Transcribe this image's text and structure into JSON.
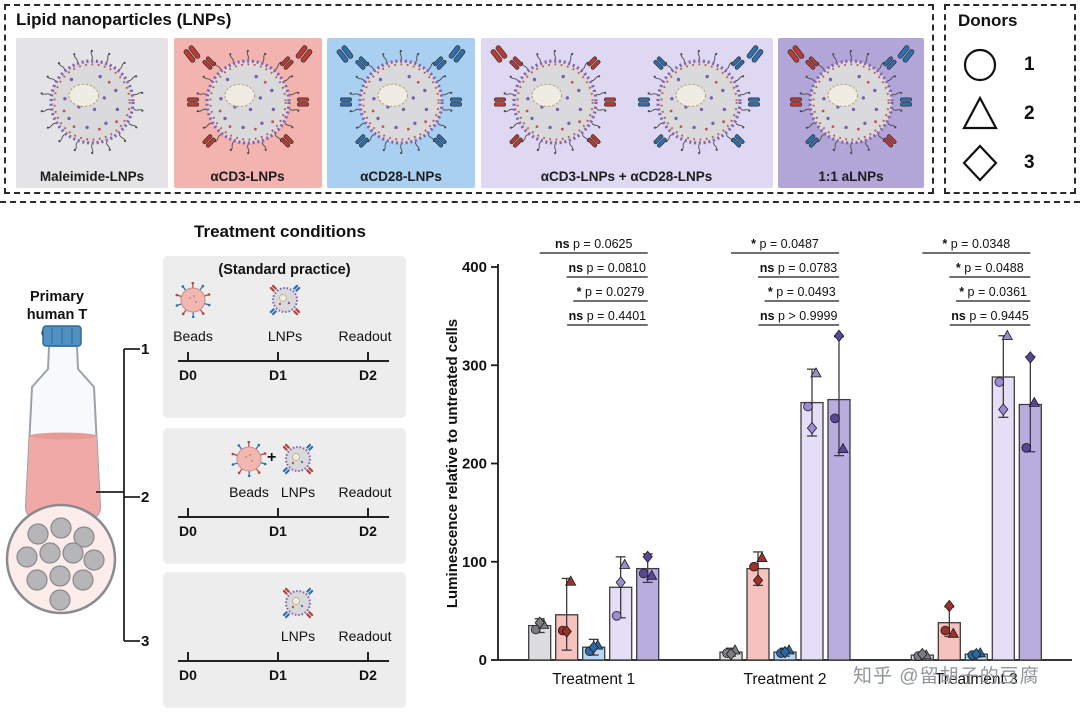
{
  "watermark": "知乎 @留胡子的豆腐",
  "lnp_panel": {
    "title": "Lipid nanoparticles (LNPs)",
    "boxes": [
      {
        "label": "Maleimide-LNPs",
        "bg": "#e4e4e6",
        "antibody": "none"
      },
      {
        "label": "αCD3-LNPs",
        "bg": "#f3b3ae",
        "antibody": "red"
      },
      {
        "label": "αCD28-LNPs",
        "bg": "#a9cff1",
        "antibody": "blue"
      },
      {
        "label": "αCD3-LNPs + αCD28-LNPs",
        "bg": "#ded8f3",
        "antibody": "red+blue"
      },
      {
        "label": "1:1 aLNPs",
        "bg": "#b2a5d8",
        "antibody": "mixed"
      }
    ]
  },
  "donors_panel": {
    "title": "Donors",
    "entries": [
      {
        "shape": "circle",
        "label": "1"
      },
      {
        "shape": "triangle",
        "label": "2"
      },
      {
        "shape": "diamond",
        "label": "3"
      }
    ]
  },
  "treatment_panel": {
    "title": "Treatment conditions",
    "source_label": "Primary human T cells",
    "conditions": [
      {
        "number": "1",
        "note": "(Standard practice)",
        "labels": {
          "beads": "Beads",
          "lnps": "LNPs",
          "readout": "Readout"
        },
        "timeline": [
          "D0",
          "D1",
          "D2"
        ]
      },
      {
        "number": "2",
        "labels": {
          "beads": "Beads",
          "plus": "+",
          "lnps": "LNPs",
          "readout": "Readout"
        },
        "timeline": [
          "D0",
          "D1",
          "D2"
        ]
      },
      {
        "number": "3",
        "labels": {
          "lnps": "LNPs",
          "readout": "Readout"
        },
        "timeline": [
          "D0",
          "D1",
          "D2"
        ]
      }
    ]
  },
  "chart_data": {
    "type": "bar",
    "title": "",
    "ylabel": "Luminescence relative to untreated cells",
    "xlabel": "",
    "ylim": [
      0,
      400
    ],
    "yticks": [
      0,
      100,
      200,
      300,
      400
    ],
    "grid": false,
    "legend": "none (colors match LNP boxes, marker shapes = donors)",
    "categories": [
      "Treatment 1",
      "Treatment 2",
      "Treatment 3"
    ],
    "donor_markers": [
      "circle",
      "triangle",
      "diamond"
    ],
    "series": [
      {
        "name": "Maleimide-LNPs",
        "fill": "#dcdcdf",
        "point_color": "#7c7c82",
        "values": [
          35,
          8,
          5
        ],
        "err_low": [
          28,
          4,
          3
        ],
        "err_high": [
          42,
          12,
          7
        ],
        "points": [
          [
            31,
            36,
            38
          ],
          [
            7,
            10,
            6
          ],
          [
            4,
            5,
            6
          ]
        ]
      },
      {
        "name": "αCD3-LNPs",
        "fill": "#f6c2bd",
        "point_color": "#9e312a",
        "values": [
          46,
          93,
          38
        ],
        "err_low": [
          10,
          76,
          24
        ],
        "err_high": [
          83,
          110,
          54
        ],
        "points": [
          [
            30,
            80,
            29
          ],
          [
            95,
            104,
            81
          ],
          [
            30,
            27,
            55
          ]
        ]
      },
      {
        "name": "αCD28-LNPs",
        "fill": "#b7d7f3",
        "point_color": "#2e68a0",
        "values": [
          13,
          8,
          6
        ],
        "err_low": [
          5,
          4,
          3
        ],
        "err_high": [
          21,
          12,
          9
        ],
        "points": [
          [
            9,
            15,
            13
          ],
          [
            7,
            10,
            8
          ],
          [
            5,
            7,
            6
          ]
        ]
      },
      {
        "name": "αCD3-LNPs + αCD28-LNPs",
        "fill": "#e4def6",
        "point_color": "#9c8bce",
        "values": [
          74,
          262,
          288
        ],
        "err_low": [
          43,
          228,
          247
        ],
        "err_high": [
          105,
          296,
          330
        ],
        "points": [
          [
            45,
            97,
            79
          ],
          [
            258,
            292,
            236
          ],
          [
            283,
            330,
            255
          ]
        ]
      },
      {
        "name": "1:1 aLNPs",
        "fill": "#b9acdf",
        "point_color": "#5a4698",
        "values": [
          93,
          265,
          260
        ],
        "err_low": [
          79,
          208,
          212
        ],
        "err_high": [
          108,
          329,
          309
        ],
        "points": [
          [
            88,
            86,
            105
          ],
          [
            246,
            215,
            330
          ],
          [
            216,
            262,
            308
          ]
        ]
      }
    ],
    "annotations": [
      {
        "group": "Treatment 1",
        "rows": [
          {
            "sig": "ns",
            "p": "p = 0.0625"
          },
          {
            "sig": "ns",
            "p": "p = 0.0810"
          },
          {
            "sig": "*",
            "p": "p = 0.0279"
          },
          {
            "sig": "ns",
            "p": "p = 0.4401"
          }
        ]
      },
      {
        "group": "Treatment 2",
        "rows": [
          {
            "sig": "*",
            "p": "p = 0.0487"
          },
          {
            "sig": "ns",
            "p": "p = 0.0783"
          },
          {
            "sig": "*",
            "p": "p = 0.0493"
          },
          {
            "sig": "ns",
            "p": "p > 0.9999"
          }
        ]
      },
      {
        "group": "Treatment 3",
        "rows": [
          {
            "sig": "*",
            "p": "p = 0.0348"
          },
          {
            "sig": "*",
            "p": "p = 0.0488"
          },
          {
            "sig": "*",
            "p": "p = 0.0361"
          },
          {
            "sig": "ns",
            "p": "p = 0.9445"
          }
        ]
      }
    ]
  }
}
